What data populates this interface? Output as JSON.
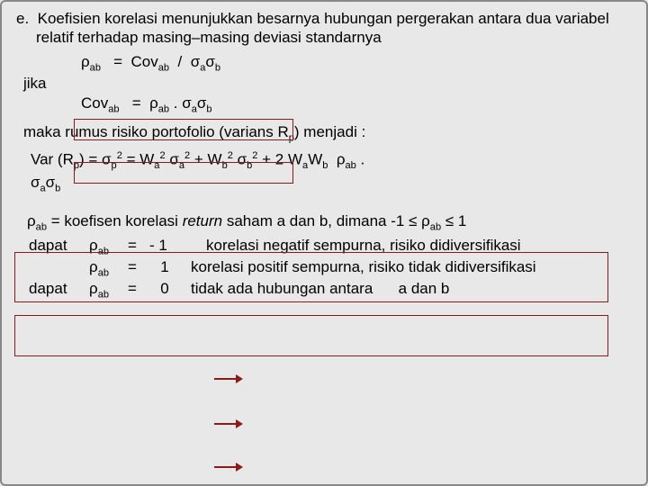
{
  "heading": {
    "marker": "e.",
    "text": "Koefisien korelasi menunjukkan besarnya hubungan pergerakan antara dua variabel relatif terhadap masing–masing deviasi standarnya"
  },
  "formula1": {
    "rho": "ρ",
    "sub_ab": "ab",
    "eq": "=",
    "cov": "Cov",
    "slash": "/",
    "sigma": "σ",
    "sub_a": "a",
    "sub_b": "b"
  },
  "jika": "jika",
  "formula2": {
    "cov": "Cov",
    "sub_ab": "ab",
    "eq": "=",
    "rho": "ρ",
    "dot": ".",
    "sigma": "σ",
    "sub_a": "a",
    "sub_b": "b"
  },
  "maka": "maka rumus risiko portofolio (varians R",
  "maka_sub": "p",
  "maka_tail": ") menjadi :",
  "varline": {
    "lhs": "Var (R",
    "p1": "p",
    "mid1": ")  =  σ",
    "sq": "2",
    "mid2": "  =   W",
    "a": "a",
    "b": "b",
    "sigma": "σ",
    "plus": " + ",
    "two": " + 2 ",
    "W": "W",
    "rho": "ρ",
    "ab": "ab",
    "dot": " . "
  },
  "koef": {
    "rho": "ρ",
    "ab": "ab",
    "t1": "  =  koefisen korelasi ",
    "return": "return",
    "t2": " saham a dan b, dimana  -1 ≤ ρ",
    "t3": " ≤ 1"
  },
  "rows": {
    "dapat": "dapat",
    "rho": "ρ",
    "ab": "ab",
    "eq": "=",
    "v1": "- 1",
    "v2": "1",
    "v3": "0",
    "d1": "korelasi negatif sempurna, risiko didiversifikasi",
    "d2": "korelasi positif sempurna, risiko tidak didiversifikasi",
    "d3a": "tidak ada hubungan antara",
    "d3b": "a dan b"
  }
}
